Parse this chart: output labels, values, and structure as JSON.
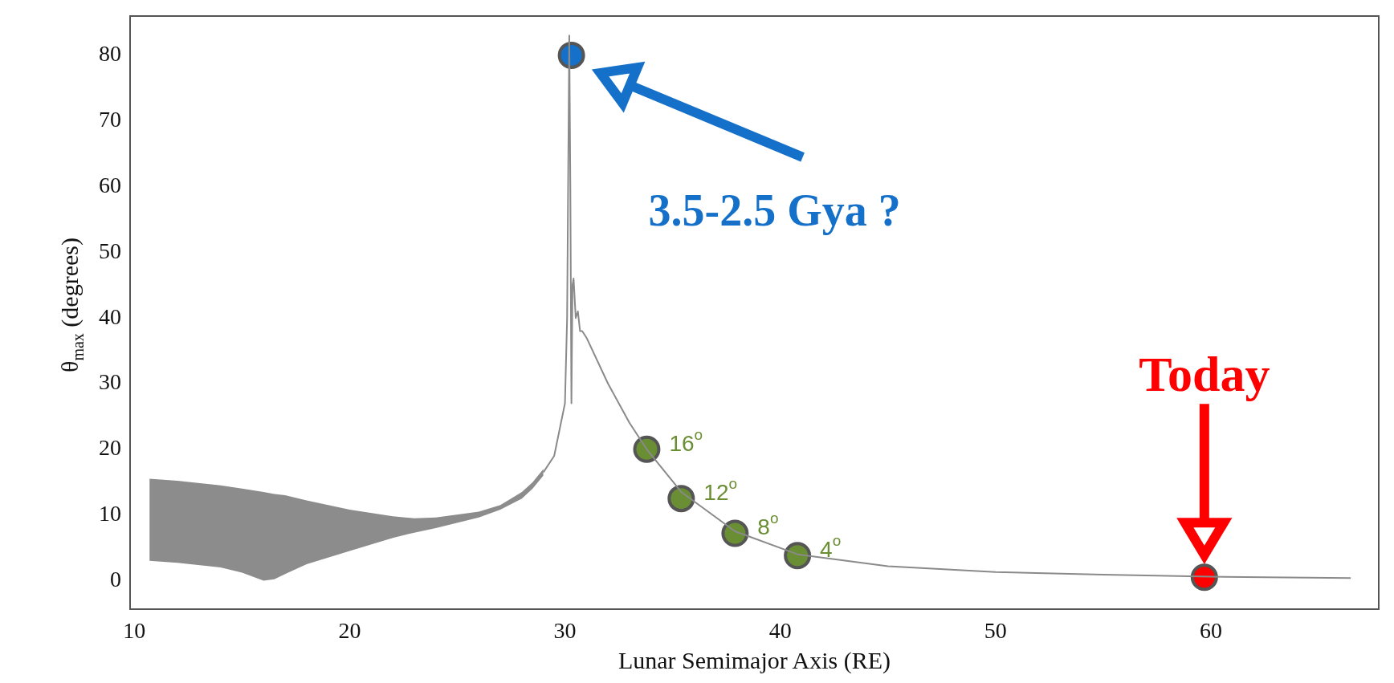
{
  "chart_data": {
    "type": "line",
    "xlabel": "Lunar Semimajor Axis (RE)",
    "ylabel": "θ$_{max}$ (degrees)",
    "xlim": [
      9.8,
      67.8
    ],
    "ylim": [
      -4.4,
      86
    ],
    "xticks": [
      10,
      20,
      30,
      40,
      50,
      60
    ],
    "yticks": [
      0,
      10,
      20,
      30,
      40,
      50,
      60,
      70,
      80
    ],
    "grid": false,
    "legend": false,
    "series": [
      {
        "color": "#8a8a8a",
        "x": [
          10.7,
          12,
          14,
          15,
          16,
          16.5,
          17,
          18,
          20,
          22,
          23,
          24,
          26,
          27,
          28,
          28.5,
          29,
          29.5,
          30,
          30.1,
          30.2,
          30.25,
          30.3,
          30.35,
          30.4,
          30.5,
          30.6,
          30.7,
          30.8,
          31,
          32,
          33,
          33.8,
          35.4,
          37.9,
          40.8,
          45,
          50,
          55,
          60,
          66.5
        ],
        "values": [
          null,
          null,
          null,
          null,
          null,
          null,
          null,
          null,
          null,
          null,
          null,
          null,
          null,
          null,
          null,
          null,
          16.5,
          19,
          27,
          40,
          83,
          60,
          27,
          45,
          46,
          40,
          41,
          38,
          38,
          37,
          30,
          24,
          20,
          13.5,
          7.5,
          4,
          2.2,
          1.3,
          0.9,
          0.6,
          0.4
        ],
        "upper": [
          15.5,
          15.2,
          14.5,
          14,
          13.5,
          13.2,
          13,
          12.2,
          10.8,
          9.8,
          9.5,
          9.6,
          10.5,
          11.5,
          13.5,
          15,
          17,
          null,
          null,
          null,
          null,
          null,
          null,
          null,
          null,
          null,
          null,
          null,
          null,
          null,
          null,
          null,
          null,
          null,
          null,
          null,
          null,
          null,
          null,
          null,
          null
        ],
        "lower": [
          3,
          2.7,
          2,
          1.2,
          0,
          0.2,
          1,
          2.5,
          4.5,
          6.5,
          7.3,
          8,
          9.6,
          10.8,
          12.5,
          14,
          16,
          null,
          null,
          null,
          null,
          null,
          null,
          null,
          null,
          null,
          null,
          null,
          null,
          null,
          null,
          null,
          null,
          null,
          null,
          null,
          null,
          null,
          null,
          null,
          null
        ]
      },
      {
        "type": "scatter",
        "marker": "circle",
        "x": [
          30.3,
          33.8,
          35.4,
          37.9,
          40.8,
          59.7
        ],
        "values": [
          80,
          20,
          12.5,
          7.2,
          3.8,
          0.5
        ],
        "colors": [
          "#1470c8",
          "#6a8e34",
          "#6a8e34",
          "#6a8e34",
          "#6a8e34",
          "#ff0000"
        ]
      }
    ],
    "annotations": [
      "3.5-2.5 Gya ?",
      {
        "text": "16$^{o}$",
        "x": 33.8,
        "y": 20
      },
      {
        "text": "12$^{o}$",
        "x": 35.4,
        "y": 12.5
      },
      {
        "text": "8$^{o}$",
        "x": 37.9,
        "y": 7.2
      },
      {
        "text": "4$^{o}$",
        "x": 40.8,
        "y": 3.8
      },
      "Today"
    ]
  }
}
